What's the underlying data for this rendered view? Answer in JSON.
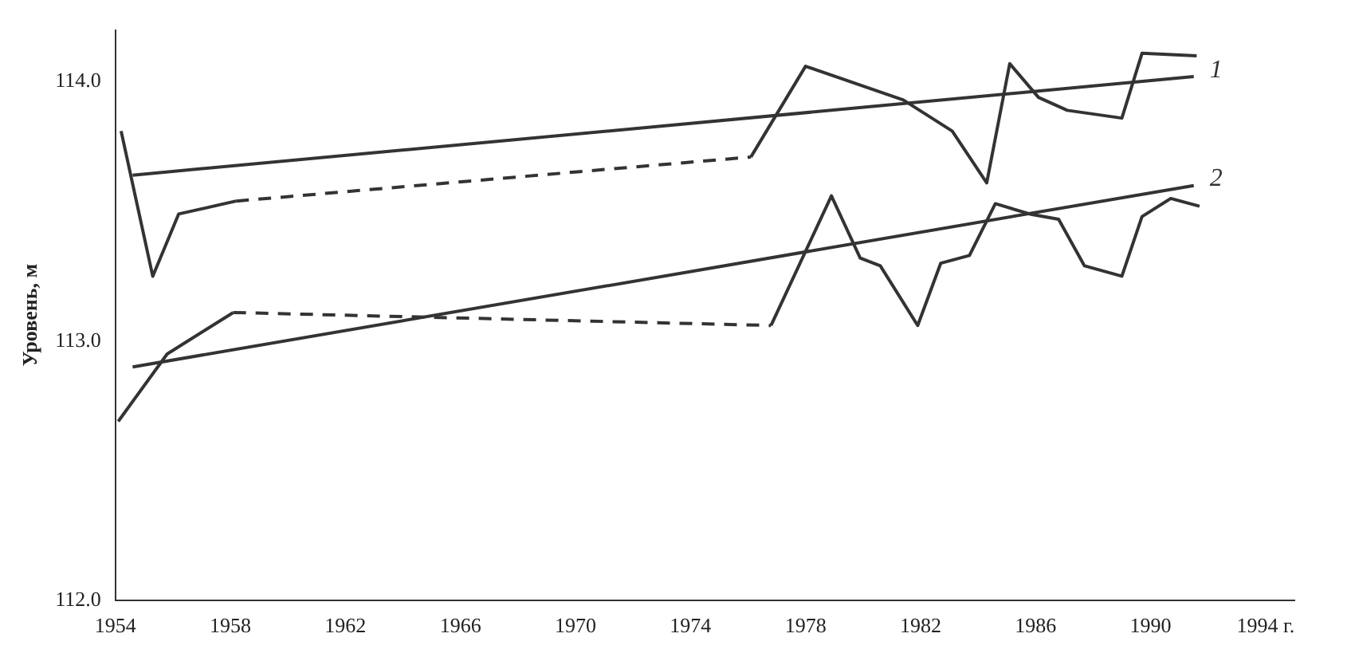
{
  "chart_data": {
    "type": "line",
    "ylabel": "Уровень, м",
    "xlim": [
      1954,
      1995
    ],
    "ylim": [
      112,
      114.2
    ],
    "xticks": [
      1954,
      1958,
      1962,
      1966,
      1970,
      1974,
      1978,
      1982,
      1986,
      1990,
      {
        "value": 1994,
        "label": "1994 г."
      }
    ],
    "yticks": [
      {
        "value": 112,
        "label": "112.0"
      },
      {
        "value": 113,
        "label": "113.0"
      },
      {
        "value": 114,
        "label": "114.0"
      }
    ],
    "grid": false,
    "legend": false,
    "marker": "none",
    "line_style": "solid",
    "series": [
      {
        "color": "#333333",
        "x": [
          1954.2,
          1955.3,
          1956.2,
          1958.2
        ],
        "values": [
          113.81,
          113.25,
          113.49,
          113.54
        ]
      },
      {
        "color": "#333333",
        "line_style": "dashed",
        "x": [
          1958.2,
          1976.1
        ],
        "values": [
          113.54,
          113.71
        ]
      },
      {
        "color": "#333333",
        "x": [
          1976.1,
          1978.0,
          1981.4,
          1983.1,
          1984.3,
          1985.1,
          1986.1,
          1987.1,
          1989.0,
          1989.7,
          1991.6
        ],
        "values": [
          113.71,
          114.06,
          113.93,
          113.81,
          113.61,
          114.07,
          113.94,
          113.89,
          113.86,
          114.11,
          114.1
        ]
      },
      {
        "name": "1",
        "color": "#333333",
        "x": [
          1954.6,
          1991.5
        ],
        "values": [
          113.64,
          114.02
        ]
      },
      {
        "color": "#333333",
        "x": [
          1954.1,
          1955.8,
          1958.1
        ],
        "values": [
          112.69,
          112.95,
          113.11
        ]
      },
      {
        "color": "#333333",
        "line_style": "dashed",
        "x": [
          1958.1,
          1976.8
        ],
        "values": [
          113.11,
          113.06
        ]
      },
      {
        "color": "#333333",
        "x": [
          1976.8,
          1978.9,
          1979.9,
          1980.6,
          1981.9,
          1982.7,
          1983.7,
          1984.6,
          1985.8,
          1986.8,
          1987.7,
          1989.0,
          1989.7,
          1990.7,
          1991.7
        ],
        "values": [
          113.06,
          113.56,
          113.32,
          113.29,
          113.06,
          113.3,
          113.33,
          113.53,
          113.49,
          113.47,
          113.29,
          113.25,
          113.48,
          113.55,
          113.52
        ]
      },
      {
        "name": "2",
        "color": "#333333",
        "x": [
          1954.6,
          1991.5
        ],
        "values": [
          112.9,
          113.6
        ]
      }
    ]
  }
}
